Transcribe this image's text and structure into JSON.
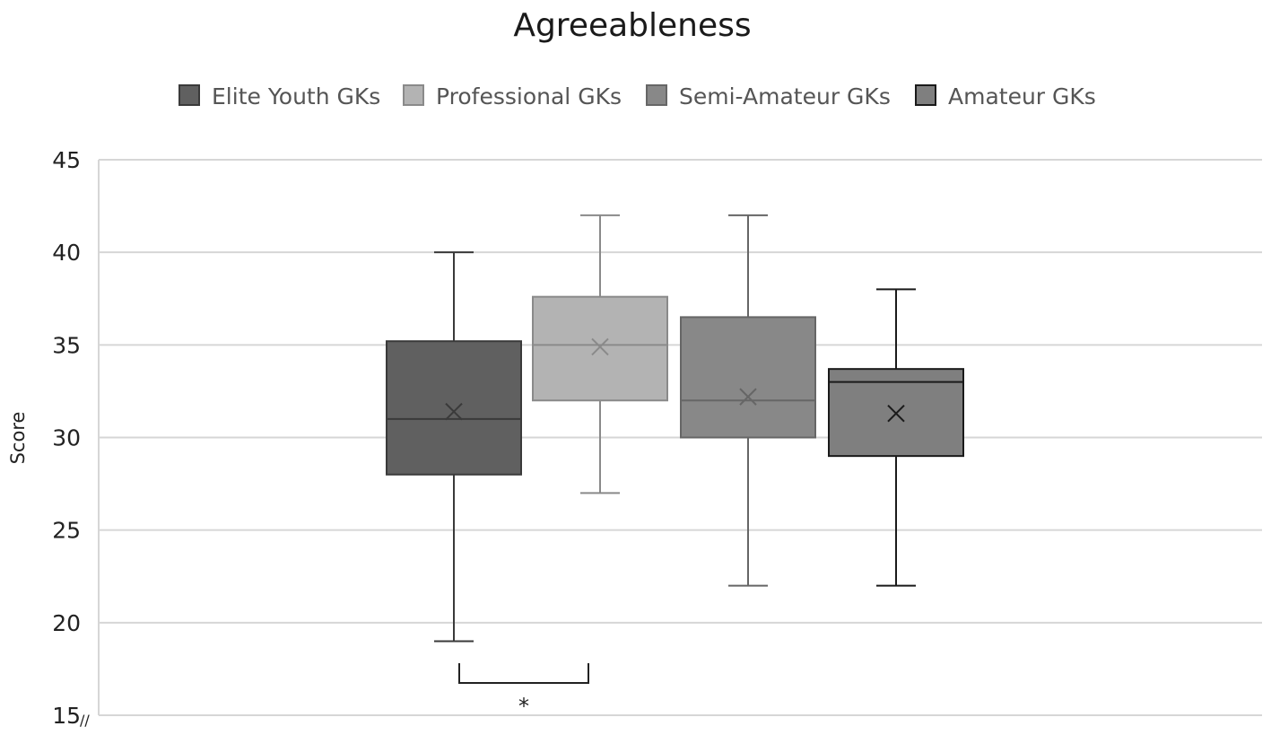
{
  "chart_data": {
    "type": "boxplot",
    "title": "Agreeableness",
    "ylabel": "Score",
    "xlabel": "",
    "ylim": [
      15,
      45
    ],
    "yticks": [
      15,
      20,
      25,
      30,
      35,
      40,
      45
    ],
    "axis_break_mark": "//",
    "grid": true,
    "legend_position": "top",
    "series": [
      {
        "name": "Elite Youth GKs",
        "min": 19,
        "q1": 28,
        "median": 31,
        "q3": 35.2,
        "max": 40,
        "mean": 31.4,
        "color": "#606060",
        "line": "#3a3a3a"
      },
      {
        "name": "Professional GKs",
        "min": 27,
        "q1": 32,
        "median": 35,
        "q3": 37.6,
        "max": 42,
        "mean": 34.9,
        "color": "#b3b3b3",
        "line": "#8a8a8a"
      },
      {
        "name": "Semi-Amateur GKs",
        "min": 22,
        "q1": 30,
        "median": 32,
        "q3": 36.5,
        "max": 42,
        "mean": 32.2,
        "color": "#888888",
        "line": "#666666"
      },
      {
        "name": "Amateur GKs",
        "min": 22,
        "q1": 29,
        "median": 33,
        "q3": 33.7,
        "max": 38,
        "mean": 31.3,
        "color": "#7f7f7f",
        "line": "#1a1a1a"
      }
    ],
    "significance": [
      {
        "between": [
          "Elite Youth GKs",
          "Professional GKs"
        ],
        "label": "*"
      }
    ]
  }
}
